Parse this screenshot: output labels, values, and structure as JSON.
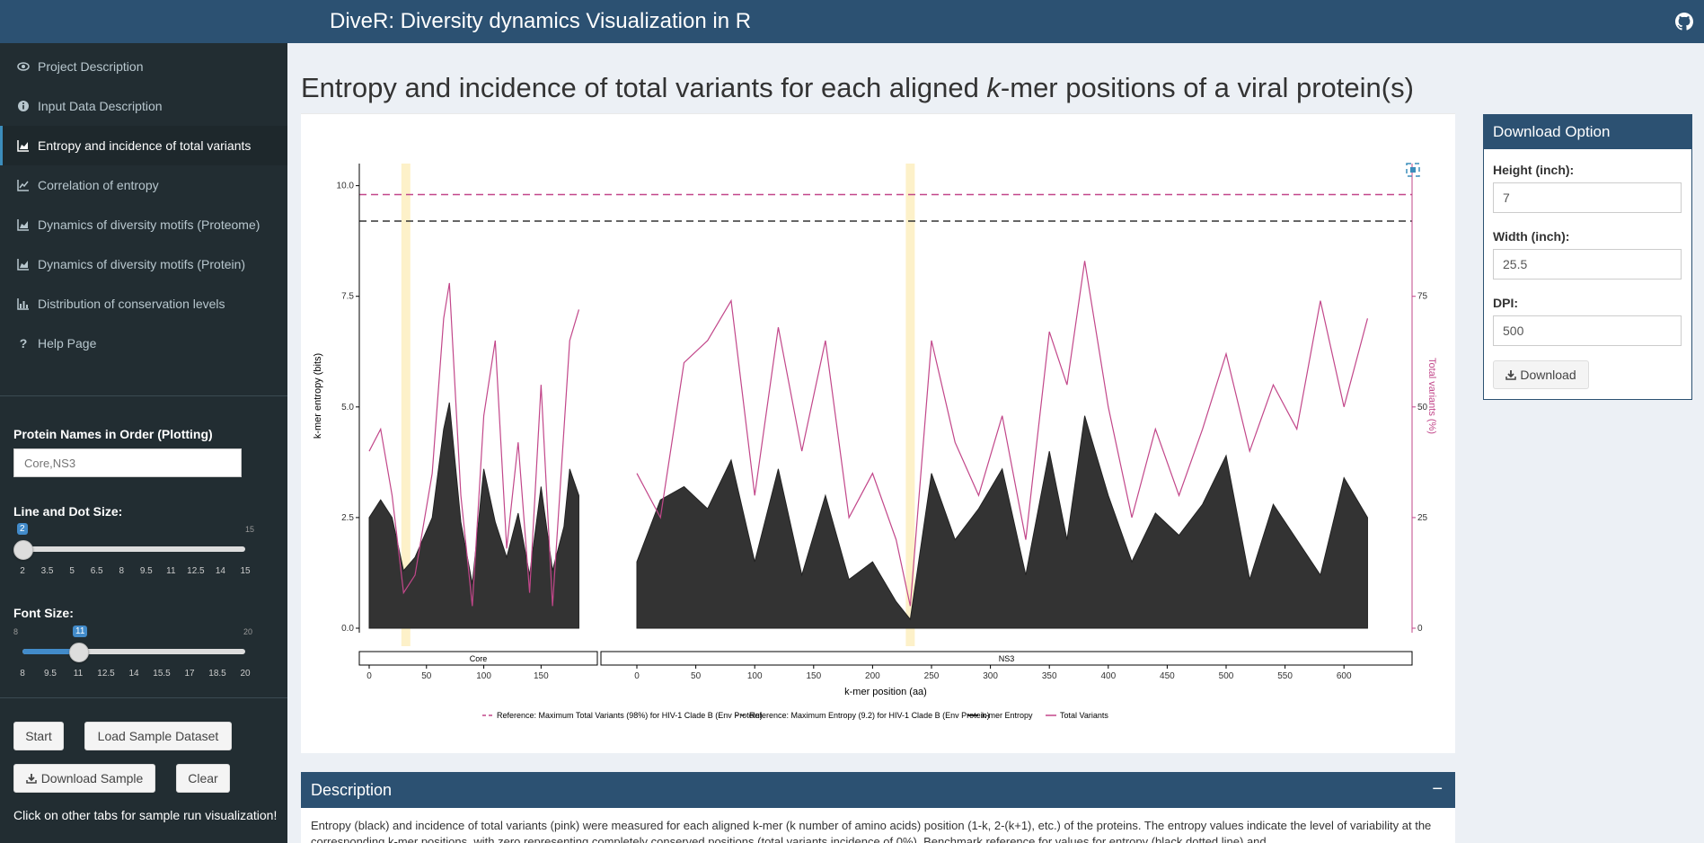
{
  "header": {
    "title": "DiveR: Diversity dynamics Visualization in R",
    "github_icon": "github-icon"
  },
  "sidebar": {
    "items": [
      {
        "label": "Project Description",
        "icon": "eye-icon"
      },
      {
        "label": "Input Data Description",
        "icon": "info-circle-icon"
      },
      {
        "label": "Entropy and incidence of total variants",
        "icon": "area-chart-icon",
        "active": true
      },
      {
        "label": "Correlation of entropy",
        "icon": "line-chart-icon"
      },
      {
        "label": "Dynamics of diversity motifs (Proteome)",
        "icon": "area-chart-icon"
      },
      {
        "label": "Dynamics of diversity motifs (Protein)",
        "icon": "area-chart-icon"
      },
      {
        "label": "Distribution of conservation levels",
        "icon": "bar-chart-icon"
      },
      {
        "label": "Help Page",
        "icon": "question-icon"
      }
    ],
    "protein_names": {
      "label": "Protein Names in Order (Plotting)",
      "placeholder": "Core,NS3"
    },
    "line_dot": {
      "label": "Line and Dot Size:",
      "min": "2",
      "max": "15",
      "value": "2",
      "value_num": 2,
      "min_num": 2,
      "max_num": 15,
      "ticks": [
        "2",
        "3.5",
        "5",
        "6.5",
        "8",
        "9.5",
        "11",
        "12.5",
        "14",
        "15"
      ]
    },
    "font_size": {
      "label": "Font Size:",
      "min": "8",
      "max": "20",
      "value": "11",
      "value_num": 11,
      "min_num": 8,
      "max_num": 20,
      "ticks": [
        "8",
        "9.5",
        "11",
        "12.5",
        "14",
        "15.5",
        "17",
        "18.5",
        "20"
      ]
    },
    "buttons": {
      "start": "Start",
      "load_sample": "Load Sample Dataset",
      "download_sample": "Download Sample",
      "clear": "Clear"
    },
    "note": "Click on other tabs for sample run visualization!"
  },
  "main": {
    "title_pre": "Entropy and incidence of total variants for each aligned ",
    "title_k": "k",
    "title_post": "-mer positions of a viral protein(s)",
    "description": {
      "title": "Description",
      "toggle": "−",
      "text": "Entropy (black) and incidence of total variants (pink) were measured for each aligned k-mer (k number of amino acids) position (1-k, 2-(k+1), etc.) of the proteins. The entropy values indicate the level of variability at the corresponding k-mer positions, with zero representing completely conserved positions (total variants incidence of 0%). Benchmark reference for values for entropy (black dotted line) and"
    }
  },
  "download": {
    "title": "Download Option",
    "height_label": "Height (inch):",
    "height_value": "7",
    "width_label": "Width (inch):",
    "width_value": "25.5",
    "dpi_label": "DPI:",
    "dpi_value": "500",
    "button": "Download"
  },
  "chart_data": {
    "type": "area",
    "xlabel": "k-mer position (aa)",
    "ylabel": "k-mer entropy (bits)",
    "y2label": "Total variants (%)",
    "ylim": [
      0,
      10
    ],
    "y2lim": [
      0,
      100
    ],
    "yticks": [
      "0.0",
      "2.5",
      "5.0",
      "7.5",
      "10.0"
    ],
    "y2ticks": [
      "0",
      "25",
      "50",
      "75"
    ],
    "panels": [
      {
        "name": "Core",
        "xlim": [
          0,
          185
        ],
        "xticks": [
          "0",
          "50",
          "100",
          "150"
        ]
      },
      {
        "name": "NS3",
        "xlim": [
          0,
          625
        ],
        "xticks": [
          "0",
          "50",
          "100",
          "150",
          "200",
          "250",
          "300",
          "350",
          "400",
          "450",
          "500",
          "550",
          "600"
        ]
      }
    ],
    "reference_lines": [
      {
        "label": "Reference: Maximum Total Variants (98%) for HIV-1 Clade B (Env Protein)",
        "value_pct": 98,
        "color": "#c2478a"
      },
      {
        "label": "Reference: Maximum Entropy (9.2) for HIV-1 Clade B (Env Protein)",
        "value_bits": 9.2,
        "color": "#333333"
      }
    ],
    "highlights": [
      {
        "panel": "Core",
        "x": 32
      },
      {
        "panel": "NS3",
        "x": 232
      }
    ],
    "legend": [
      "Reference: Maximum Total Variants (98%) for HIV-1 Clade B (Env Protein)",
      "Reference: Maximum Entropy (9.2) for HIV-1 Clade B (Env Protein)",
      "k-mer Entropy",
      "Total Variants"
    ],
    "series": [
      {
        "name": "k-mer Entropy",
        "panel": "Core",
        "x": [
          0,
          10,
          20,
          30,
          40,
          55,
          65,
          70,
          80,
          90,
          100,
          110,
          120,
          130,
          140,
          150,
          160,
          170,
          175,
          183
        ],
        "values": [
          2.5,
          2.9,
          2.5,
          1.3,
          1.6,
          2.5,
          4.5,
          5.1,
          2.4,
          1.0,
          3.6,
          2.4,
          1.6,
          2.6,
          1.2,
          3.2,
          1.3,
          2.3,
          3.6,
          3.0
        ]
      },
      {
        "name": "Total Variants",
        "panel": "Core",
        "x": [
          0,
          10,
          20,
          30,
          40,
          55,
          65,
          70,
          80,
          90,
          100,
          110,
          120,
          130,
          140,
          150,
          160,
          170,
          175,
          183
        ],
        "values": [
          40,
          45,
          30,
          8,
          12,
          35,
          70,
          78,
          30,
          5,
          48,
          65,
          18,
          42,
          8,
          55,
          5,
          45,
          65,
          72
        ]
      },
      {
        "name": "k-mer Entropy",
        "panel": "NS3",
        "x": [
          0,
          20,
          40,
          60,
          80,
          100,
          120,
          140,
          160,
          180,
          200,
          220,
          232,
          250,
          270,
          290,
          310,
          330,
          350,
          365,
          380,
          400,
          420,
          440,
          460,
          480,
          500,
          520,
          540,
          560,
          580,
          600,
          620
        ],
        "values": [
          1.5,
          2.9,
          3.2,
          2.7,
          3.8,
          1.5,
          3.6,
          1.2,
          3.0,
          1.1,
          1.5,
          0.6,
          0.2,
          3.5,
          2.0,
          2.7,
          3.6,
          1.2,
          4.0,
          2.0,
          4.8,
          3.0,
          1.5,
          2.6,
          2.1,
          2.8,
          3.9,
          1.1,
          2.8,
          2.0,
          1.2,
          3.4,
          2.5
        ]
      },
      {
        "name": "Total Variants",
        "panel": "NS3",
        "x": [
          0,
          20,
          40,
          60,
          80,
          100,
          120,
          140,
          160,
          180,
          200,
          220,
          232,
          250,
          270,
          290,
          310,
          330,
          350,
          365,
          380,
          400,
          420,
          440,
          460,
          480,
          500,
          520,
          540,
          560,
          580,
          600,
          620
        ],
        "values": [
          35,
          25,
          60,
          65,
          74,
          30,
          68,
          40,
          65,
          25,
          35,
          20,
          5,
          65,
          42,
          30,
          48,
          20,
          67,
          55,
          83,
          50,
          25,
          45,
          30,
          45,
          62,
          40,
          55,
          45,
          74,
          50,
          70
        ]
      }
    ]
  }
}
